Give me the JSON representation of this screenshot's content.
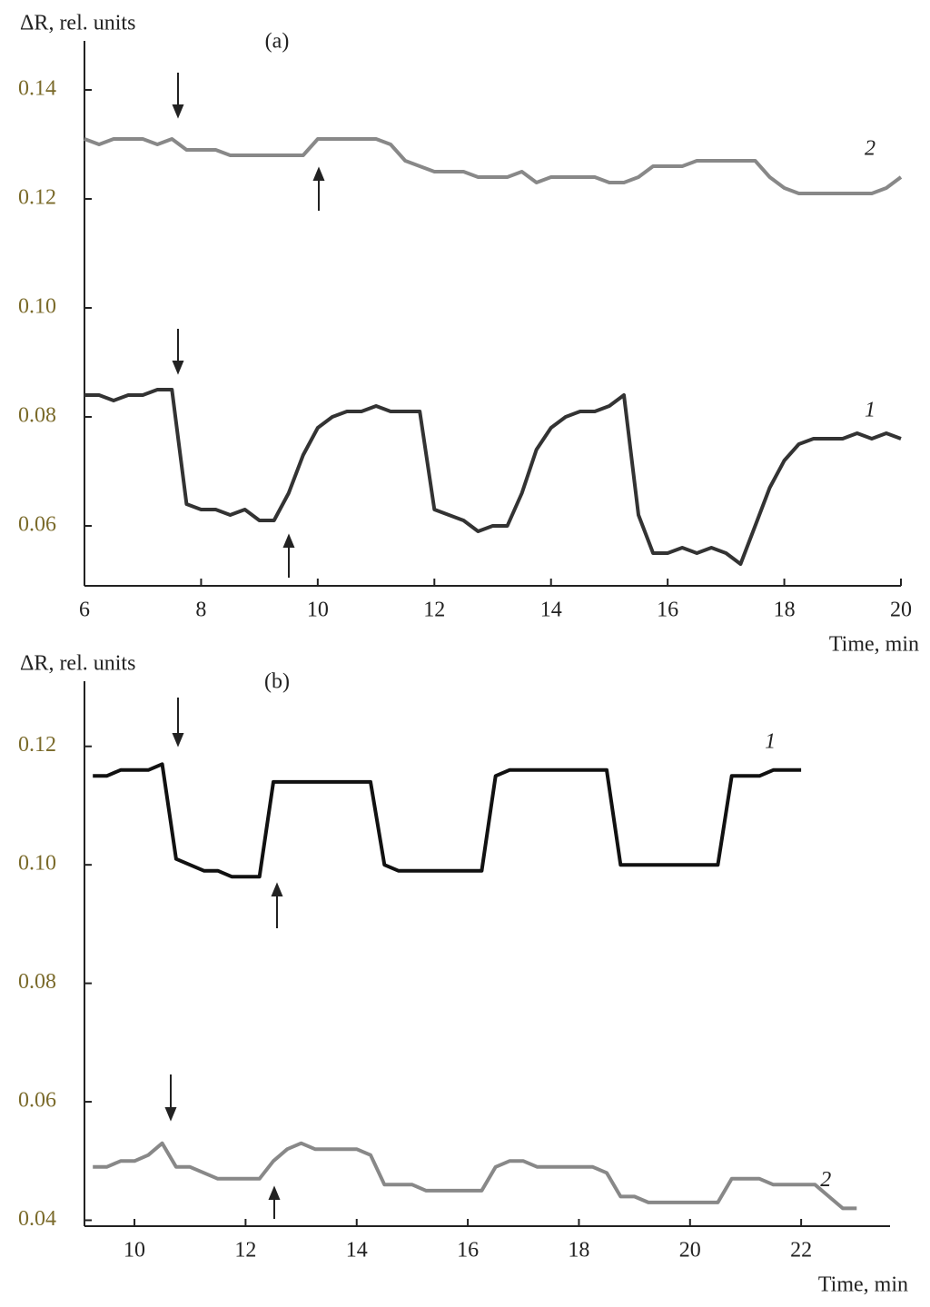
{
  "chart_data": [
    {
      "type": "line",
      "title": "(a)",
      "y_label": "ΔR, rel. units",
      "x_label": "Time, min",
      "x": [
        6,
        6.25,
        6.5,
        6.75,
        7,
        7.25,
        7.5,
        7.75,
        8,
        8.25,
        8.5,
        8.75,
        9,
        9.25,
        9.5,
        9.75,
        10,
        10.25,
        10.5,
        10.75,
        11,
        11.25,
        11.5,
        11.75,
        12,
        12.25,
        12.5,
        12.75,
        13,
        13.25,
        13.5,
        13.75,
        14,
        14.25,
        14.5,
        14.75,
        15,
        15.25,
        15.5,
        15.75,
        16,
        16.25,
        16.5,
        16.75,
        17,
        17.25,
        17.5,
        17.75,
        18,
        18.25,
        18.5,
        18.75,
        19,
        19.25,
        19.5,
        19.75,
        20
      ],
      "series": [
        {
          "name": "1",
          "color": "#333333",
          "values": [
            0.084,
            0.084,
            0.083,
            0.084,
            0.084,
            0.085,
            0.085,
            0.064,
            0.063,
            0.063,
            0.062,
            0.063,
            0.061,
            0.061,
            0.066,
            0.073,
            0.078,
            0.08,
            0.081,
            0.081,
            0.082,
            0.081,
            0.081,
            0.081,
            0.063,
            0.062,
            0.061,
            0.059,
            0.06,
            0.06,
            0.066,
            0.074,
            0.078,
            0.08,
            0.081,
            0.081,
            0.082,
            0.084,
            0.062,
            0.055,
            0.055,
            0.056,
            0.055,
            0.056,
            0.055,
            0.053,
            0.06,
            0.067,
            0.072,
            0.075,
            0.076,
            0.076,
            0.076,
            0.077,
            0.076,
            0.077,
            0.076
          ]
        },
        {
          "name": "2",
          "color": "#888888",
          "values": [
            0.131,
            0.13,
            0.131,
            0.131,
            0.131,
            0.13,
            0.131,
            0.129,
            0.129,
            0.129,
            0.128,
            0.128,
            0.128,
            0.128,
            0.128,
            0.128,
            0.131,
            0.131,
            0.131,
            0.131,
            0.131,
            0.13,
            0.127,
            0.126,
            0.125,
            0.125,
            0.125,
            0.124,
            0.124,
            0.124,
            0.125,
            0.123,
            0.124,
            0.124,
            0.124,
            0.124,
            0.123,
            0.123,
            0.124,
            0.126,
            0.126,
            0.126,
            0.127,
            0.127,
            0.127,
            0.127,
            0.127,
            0.124,
            0.122,
            0.121,
            0.121,
            0.121,
            0.121,
            0.121,
            0.121,
            0.122,
            0.124
          ]
        }
      ],
      "xlim": [
        6,
        20
      ],
      "xticks": [
        6,
        8,
        10,
        12,
        14,
        16,
        18,
        20
      ],
      "ylim": [
        0.049,
        0.149
      ],
      "yticks": [
        0.06,
        0.08,
        {
          "value": 0.1,
          "label": "0.10"
        },
        0.12,
        0.14
      ]
    },
    {
      "type": "line",
      "title": "(b)",
      "y_label": "ΔR, rel. units",
      "x_label": "Time, min",
      "x": [
        9.25,
        9.5,
        9.75,
        10,
        10.25,
        10.5,
        10.75,
        11,
        11.25,
        11.5,
        11.75,
        12,
        12.25,
        12.5,
        12.75,
        13,
        13.25,
        13.5,
        13.75,
        14,
        14.25,
        14.5,
        14.75,
        15,
        15.25,
        15.5,
        15.75,
        16,
        16.25,
        16.5,
        16.75,
        17,
        17.25,
        17.5,
        17.75,
        18,
        18.25,
        18.5,
        18.75,
        19,
        19.25,
        19.5,
        19.75,
        20,
        20.25,
        20.5,
        20.75,
        21,
        21.25,
        21.5,
        21.75,
        22,
        22.25,
        22.5,
        22.75,
        23
      ],
      "series": [
        {
          "name": "1",
          "color": "#111111",
          "values": [
            0.115,
            0.115,
            0.116,
            0.116,
            0.116,
            0.117,
            0.101,
            0.1,
            0.099,
            0.099,
            0.098,
            0.098,
            0.098,
            0.114,
            0.114,
            0.114,
            0.114,
            0.114,
            0.114,
            0.114,
            0.114,
            0.1,
            0.099,
            0.099,
            0.099,
            0.099,
            0.099,
            0.099,
            0.099,
            0.115,
            0.116,
            0.116,
            0.116,
            0.116,
            0.116,
            0.116,
            0.116,
            0.116,
            0.1,
            0.1,
            0.1,
            0.1,
            0.1,
            0.1,
            0.1,
            0.1,
            0.115,
            0.115,
            0.115,
            0.116,
            0.116,
            0.116,
            null,
            null,
            null,
            null
          ]
        },
        {
          "name": "2",
          "color": "#888888",
          "values": [
            0.049,
            0.049,
            0.05,
            0.05,
            0.051,
            0.053,
            0.049,
            0.049,
            0.048,
            0.047,
            0.047,
            0.047,
            0.047,
            0.05,
            0.052,
            0.053,
            0.052,
            0.052,
            0.052,
            0.052,
            0.051,
            0.046,
            0.046,
            0.046,
            0.045,
            0.045,
            0.045,
            0.045,
            0.045,
            0.049,
            0.05,
            0.05,
            0.049,
            0.049,
            0.049,
            0.049,
            0.049,
            0.048,
            0.044,
            0.044,
            0.043,
            0.043,
            0.043,
            0.043,
            0.043,
            0.043,
            0.047,
            0.047,
            0.047,
            0.046,
            0.046,
            0.046,
            0.046,
            0.044,
            0.042,
            0.042
          ]
        }
      ],
      "xlim": [
        9.1,
        23.6
      ],
      "xticks": [
        10,
        12,
        14,
        16,
        18,
        20,
        22
      ],
      "ylim": [
        0.039,
        0.131
      ],
      "yticks": [
        0.04,
        0.06,
        0.08,
        {
          "value": 0.1,
          "label": "0.10"
        },
        0.12
      ]
    }
  ]
}
